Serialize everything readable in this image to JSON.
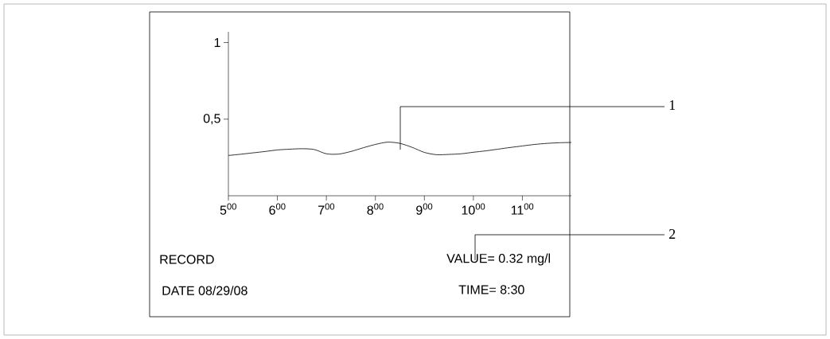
{
  "chart_data": {
    "type": "line",
    "categories": [
      "5$^{00}$",
      null,
      null,
      null,
      "6$^{00}$",
      null,
      null,
      null,
      "7$^{00}$",
      null,
      null,
      null,
      "8$^{00}$",
      null,
      null,
      null,
      "9$^{00}$",
      null,
      null,
      null,
      "10$^{00}$",
      null,
      null,
      null,
      "11$^{00}$",
      null,
      null,
      null,
      null
    ],
    "values": [
      0.263,
      0.271,
      0.28,
      0.289,
      0.299,
      0.304,
      0.307,
      0.302,
      0.274,
      0.272,
      0.289,
      0.313,
      0.335,
      0.35,
      0.342,
      0.316,
      0.283,
      0.268,
      0.27,
      0.274,
      0.284,
      0.293,
      0.304,
      0.315,
      0.325,
      0.335,
      0.342,
      0.346,
      0.348
    ],
    "ylim": [
      0,
      1.07
    ],
    "yticks": [
      {
        "value": 0.5,
        "label": "0,5"
      },
      1
    ],
    "annotations": [
      "1",
      "2",
      "RECORD",
      "VALUE= 0.32 mg/l",
      "DATE 08/29/08",
      "TIME= 8:30"
    ]
  }
}
